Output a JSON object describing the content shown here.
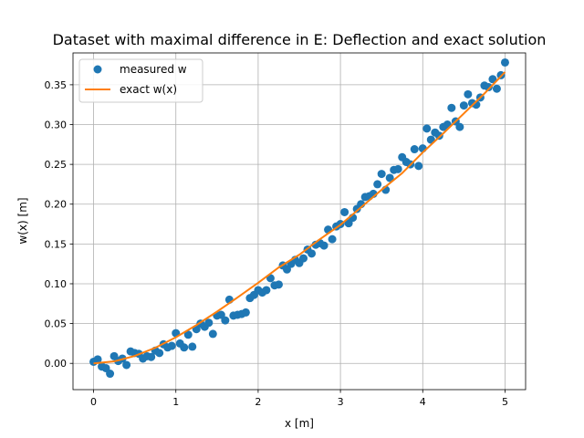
{
  "chart_data": {
    "type": "scatter",
    "title": "Dataset with maximal difference in E: Deflection and exact solution",
    "xlabel": "x [m]",
    "ylabel": "w(x) [m]",
    "xlim": [
      -0.25,
      5.25
    ],
    "ylim": [
      -0.033,
      0.39
    ],
    "xticks": [
      0,
      1,
      2,
      3,
      4,
      5
    ],
    "xtick_labels": [
      "0",
      "1",
      "2",
      "3",
      "4",
      "5"
    ],
    "yticks": [
      0.0,
      0.05,
      0.1,
      0.15,
      0.2,
      0.25,
      0.3,
      0.35
    ],
    "ytick_labels": [
      "0.00",
      "0.05",
      "0.10",
      "0.15",
      "0.20",
      "0.25",
      "0.30",
      "0.35"
    ],
    "grid": true,
    "legend_position": "top-left",
    "series": [
      {
        "name": "measured w",
        "kind": "scatter",
        "color": "#1f77b4",
        "x": [
          0.0,
          0.05,
          0.1,
          0.15,
          0.2,
          0.25,
          0.3,
          0.35,
          0.4,
          0.45,
          0.5,
          0.55,
          0.6,
          0.65,
          0.7,
          0.75,
          0.8,
          0.85,
          0.9,
          0.95,
          1.0,
          1.05,
          1.1,
          1.15,
          1.2,
          1.25,
          1.3,
          1.35,
          1.4,
          1.45,
          1.5,
          1.55,
          1.6,
          1.65,
          1.7,
          1.75,
          1.8,
          1.85,
          1.9,
          1.95,
          2.0,
          2.05,
          2.1,
          2.15,
          2.2,
          2.25,
          2.3,
          2.35,
          2.4,
          2.45,
          2.5,
          2.55,
          2.6,
          2.65,
          2.7,
          2.75,
          2.8,
          2.85,
          2.9,
          2.95,
          3.0,
          3.05,
          3.1,
          3.15,
          3.2,
          3.25,
          3.3,
          3.35,
          3.4,
          3.45,
          3.5,
          3.55,
          3.6,
          3.65,
          3.7,
          3.75,
          3.8,
          3.85,
          3.9,
          3.95,
          4.0,
          4.05,
          4.1,
          4.15,
          4.2,
          4.25,
          4.3,
          4.35,
          4.4,
          4.45,
          4.5,
          4.55,
          4.6,
          4.65,
          4.7,
          4.75,
          4.8,
          4.85,
          4.9,
          4.95,
          5.0
        ],
        "y": [
          0.002,
          0.005,
          -0.004,
          -0.006,
          -0.013,
          0.009,
          0.003,
          0.006,
          -0.002,
          0.015,
          0.013,
          0.012,
          0.006,
          0.009,
          0.008,
          0.016,
          0.013,
          0.024,
          0.02,
          0.022,
          0.038,
          0.025,
          0.02,
          0.036,
          0.021,
          0.043,
          0.05,
          0.046,
          0.051,
          0.037,
          0.06,
          0.061,
          0.054,
          0.08,
          0.06,
          0.061,
          0.062,
          0.064,
          0.082,
          0.086,
          0.092,
          0.089,
          0.092,
          0.107,
          0.098,
          0.099,
          0.123,
          0.118,
          0.125,
          0.13,
          0.126,
          0.132,
          0.143,
          0.138,
          0.149,
          0.151,
          0.148,
          0.168,
          0.156,
          0.172,
          0.175,
          0.19,
          0.176,
          0.183,
          0.194,
          0.2,
          0.209,
          0.21,
          0.213,
          0.225,
          0.238,
          0.218,
          0.233,
          0.243,
          0.244,
          0.259,
          0.253,
          0.25,
          0.269,
          0.248,
          0.27,
          0.295,
          0.281,
          0.29,
          0.286,
          0.297,
          0.3,
          0.321,
          0.304,
          0.297,
          0.324,
          0.338,
          0.327,
          0.325,
          0.334,
          0.349,
          0.347,
          0.357,
          0.345,
          0.362,
          0.378
        ]
      },
      {
        "name": "exact w(x)",
        "kind": "line",
        "color": "#ff7f0e",
        "x": [
          0.0,
          0.25,
          0.5,
          0.75,
          1.0,
          1.25,
          1.5,
          1.75,
          2.0,
          2.25,
          2.5,
          2.75,
          3.0,
          3.25,
          3.5,
          3.75,
          4.0,
          4.25,
          4.5,
          4.75,
          5.0
        ],
        "y": [
          0.0,
          0.0025,
          0.0093,
          0.0196,
          0.0328,
          0.0481,
          0.065,
          0.0828,
          0.1012,
          0.1205,
          0.1365,
          0.156,
          0.174,
          0.196,
          0.218,
          0.239,
          0.265,
          0.289,
          0.314,
          0.339,
          0.366
        ]
      }
    ]
  }
}
